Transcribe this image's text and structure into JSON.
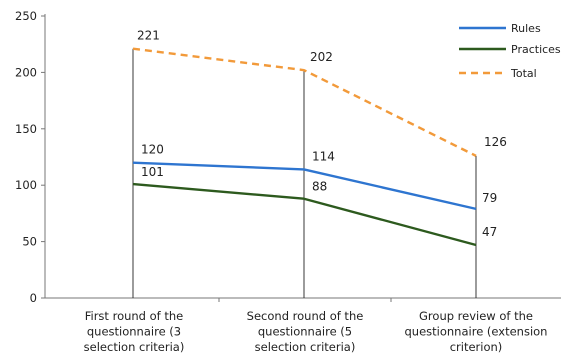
{
  "chart_data": {
    "type": "line",
    "title": "",
    "xlabel": "",
    "ylabel": "",
    "ylim": [
      0,
      250
    ],
    "yticks": [
      0,
      50,
      100,
      150,
      200,
      250
    ],
    "grid": false,
    "legend_position": "top-right",
    "categories": [
      [
        "First round of the",
        "questionnaire (3",
        "selection criteria)"
      ],
      [
        "Second round of the",
        "questionnaire (5",
        "selection criteria)"
      ],
      [
        "Group review of the",
        "questionnaire (extension",
        "criterion)"
      ]
    ],
    "series": [
      {
        "name": "Rules",
        "values": [
          120,
          114,
          79
        ],
        "color": "#2E75D0",
        "dashed": false
      },
      {
        "name": "Practices",
        "values": [
          101,
          88,
          47
        ],
        "color": "#2D5A1E",
        "dashed": false
      },
      {
        "name": "Total",
        "values": [
          221,
          202,
          126
        ],
        "color": "#F29A3A",
        "dashed": true
      }
    ],
    "data_labels": {
      "Rules": [
        "120",
        "114",
        "79"
      ],
      "Practices": [
        "101",
        "88",
        "47"
      ],
      "Total": [
        "221",
        "202",
        "126"
      ]
    }
  }
}
